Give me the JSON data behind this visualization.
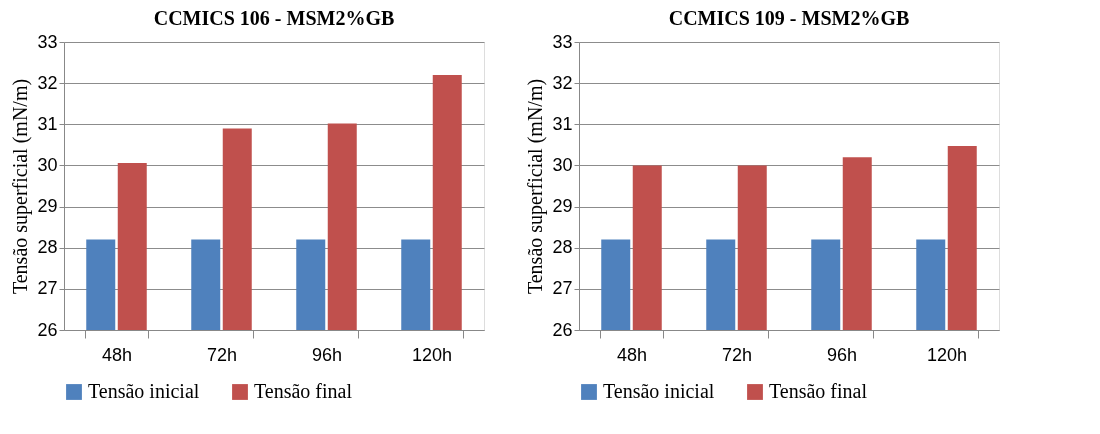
{
  "chart_data": [
    {
      "type": "bar",
      "title": "CCMICS  106  -  MSM2%GB",
      "ylabel": "Tensão superficial (mN/m)",
      "categories": [
        "48h",
        "72h",
        "96h",
        "120h"
      ],
      "series": [
        {
          "name": "Tensão inicial",
          "color": "#4f81bd",
          "values": [
            28.2,
            28.2,
            28.2,
            28.2
          ]
        },
        {
          "name": "Tensão final",
          "color": "#c0504d",
          "values": [
            30.06,
            30.9,
            31.02,
            32.2
          ]
        }
      ],
      "ylim": [
        26,
        33
      ],
      "yticks": [
        26,
        27,
        28,
        29,
        30,
        31,
        32,
        33
      ],
      "grid": "y",
      "legend": "bottom"
    },
    {
      "type": "bar",
      "title": "CCMICS 109  -  MSM2%GB",
      "ylabel": "Tensão superficial (mN/m)",
      "categories": [
        "48h",
        "72h",
        "96h",
        "120h"
      ],
      "series": [
        {
          "name": "Tensão inicial",
          "color": "#4f81bd",
          "values": [
            28.2,
            28.2,
            28.2,
            28.2
          ]
        },
        {
          "name": "Tensão final",
          "color": "#c0504d",
          "values": [
            30.0,
            30.0,
            30.2,
            30.47
          ]
        }
      ],
      "ylim": [
        26,
        33
      ],
      "yticks": [
        26,
        27,
        28,
        29,
        30,
        31,
        32,
        33
      ],
      "grid": "y",
      "legend": "bottom"
    }
  ]
}
